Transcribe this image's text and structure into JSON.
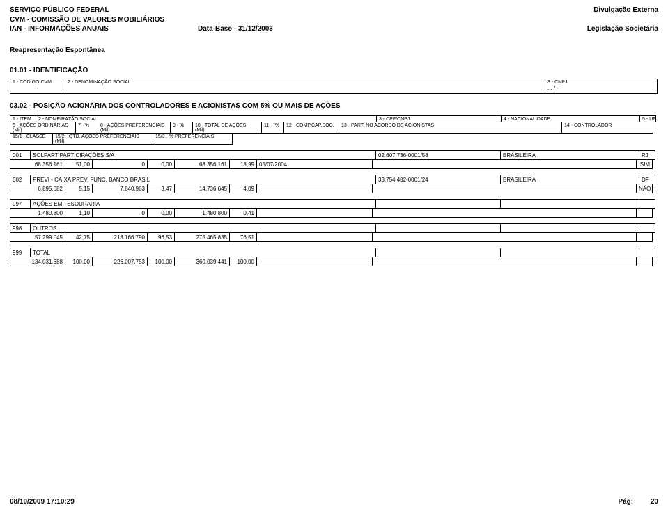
{
  "header": {
    "line1_left": "SERVIÇO PÚBLICO FEDERAL",
    "line1_right": "Divulgação Externa",
    "line2_left": "CVM - COMISSÃO DE VALORES MOBILIÁRIOS",
    "line3_left": "IAN - INFORMAÇÕES ANUAIS",
    "line3_mid": "Data-Base - 31/12/2003",
    "line3_right": "Legislação Societária",
    "reap": "Reapresentação Espontânea",
    "sec_ident": "01.01 - IDENTIFICAÇÃO"
  },
  "ident": {
    "lbl_cod": "1 - CÓDIGO CVM",
    "val_cod": "-",
    "lbl_den": "2 - DENOMINAÇÃO SOCIAL",
    "val_den": "",
    "lbl_cnpj": "3 - CNPJ",
    "val_cnpj": ".    .    /    -"
  },
  "sec_pos": "03.02 - POSIÇÃO ACIONÁRIA DOS CONTROLADORES E ACIONISTAS COM 5% OU MAIS DE AÇÕES",
  "labels_r1": {
    "item": "1 - ITEM",
    "name": "2 - NOME/RAZÃO SOCIAL",
    "cpf": "3 - CPF/CNPJ",
    "nac": "4 - NACIONALIDADE",
    "uf": "5 - UF"
  },
  "labels_r2": {
    "ord": "6 - AÇÕES ORDINÁRIAS\n(Mil)",
    "ordp": "7 - %",
    "pref": "8 - AÇÕES PREFERENCIAIS\n(Mil)",
    "prefp": "9 - %",
    "tot": "10 - TOTAL DE AÇÕES\n(Mil)",
    "totp": "11 - ¨%",
    "comp": "12 - COMP.CAP.SOC.",
    "part": "13 - PART. NO ACORDO DE ACIONISTAS",
    "ctrl": "14 - CONTROLADOR"
  },
  "labels_r3": {
    "classe": "15/1 - CLASSE",
    "qtd": "15/2 - QTD. AÇÕES PREFERENCIAIS\n(Mil)",
    "pct": "15/3 - % PREFERENCIAIS"
  },
  "rows": [
    {
      "item": "001",
      "name": "SOLPART PARTICIPAÇÕES S/A",
      "cpf": "02.607.736-0001/58",
      "nac": "BRASILEIRA",
      "uf": "RJ",
      "ord": "68.356.161",
      "ordp": "51,00",
      "pref": "0",
      "prefp": "0,00",
      "tot": "68.356.161",
      "totp": "18,99",
      "date": "05/07/2004",
      "part": "",
      "ctrl": "SIM"
    },
    {
      "item": "002",
      "name": "PREVI - CAIXA PREV. FUNC. BANCO BRASIL",
      "cpf": "33.754.482-0001/24",
      "nac": "BRASILEIRA",
      "uf": "DF",
      "ord": "6.895.682",
      "ordp": "5,15",
      "pref": "7.840.963",
      "prefp": "3,47",
      "tot": "14.736.645",
      "totp": "4,09",
      "date": "",
      "part": "",
      "ctrl": "NÃO"
    },
    {
      "item": "997",
      "name": "AÇÕES EM TESOURARIA",
      "cpf": "",
      "nac": "",
      "uf": "",
      "ord": "1.480.800",
      "ordp": "1,10",
      "pref": "0",
      "prefp": "0,00",
      "tot": "1.480.800",
      "totp": "0,41",
      "date": "",
      "part": "",
      "ctrl": ""
    },
    {
      "item": "998",
      "name": "OUTROS",
      "cpf": "",
      "nac": "",
      "uf": "",
      "ord": "57.299.045",
      "ordp": "42,75",
      "pref": "218.166.790",
      "prefp": "96,53",
      "tot": "275.465.835",
      "totp": "76,51",
      "date": "",
      "part": "",
      "ctrl": ""
    },
    {
      "item": "999",
      "name": "TOTAL",
      "cpf": "",
      "nac": "",
      "uf": "",
      "ord": "134.031.688",
      "ordp": "100,00",
      "pref": "226.007.753",
      "prefp": "100,00",
      "tot": "360.039.441",
      "totp": "100,00",
      "date": "",
      "part": "",
      "ctrl": ""
    }
  ],
  "footer": {
    "ts": "08/10/2009 17:10:29",
    "pg_label": "Pág:",
    "pg": "20"
  }
}
